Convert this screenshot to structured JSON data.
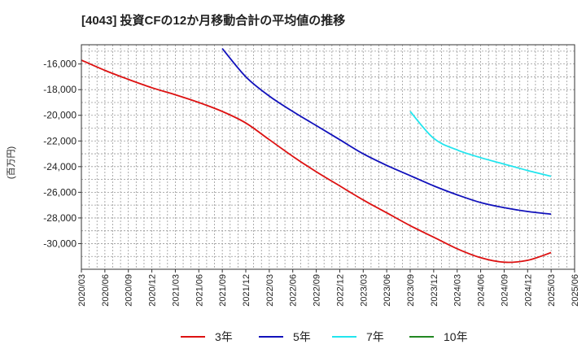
{
  "chart_data": {
    "type": "line",
    "title": "[4043]  投資CFの12か月移動合計の平均値の推移",
    "ylabel": "(百万円)",
    "xlabel": "",
    "ylim": [
      -32000,
      -14500
    ],
    "yticks": [
      -16000,
      -18000,
      -20000,
      -22000,
      -24000,
      -26000,
      -28000,
      -30000
    ],
    "ytick_labels": [
      "-16,000",
      "-18,000",
      "-20,000",
      "-22,000",
      "-24,000",
      "-26,000",
      "-28,000",
      "-30,000"
    ],
    "xticks": [
      "2020/03",
      "2020/06",
      "2020/09",
      "2020/12",
      "2021/03",
      "2021/06",
      "2021/09",
      "2021/12",
      "2022/03",
      "2022/06",
      "2022/09",
      "2022/12",
      "2023/03",
      "2023/06",
      "2023/09",
      "2023/12",
      "2024/03",
      "2024/06",
      "2024/09",
      "2024/12",
      "2025/03",
      "2025/06"
    ],
    "grid": true,
    "legend_position": "bottom",
    "series": [
      {
        "name": "3年",
        "color": "#dd1111",
        "points": [
          [
            "2020/03",
            -15700
          ],
          [
            "2020/06",
            -16500
          ],
          [
            "2020/09",
            -17200
          ],
          [
            "2020/12",
            -17850
          ],
          [
            "2021/03",
            -18400
          ],
          [
            "2021/06",
            -19000
          ],
          [
            "2021/09",
            -19700
          ],
          [
            "2021/12",
            -20600
          ],
          [
            "2022/03",
            -21900
          ],
          [
            "2022/06",
            -23200
          ],
          [
            "2022/09",
            -24400
          ],
          [
            "2022/12",
            -25500
          ],
          [
            "2023/03",
            -26600
          ],
          [
            "2023/06",
            -27600
          ],
          [
            "2023/09",
            -28600
          ],
          [
            "2023/12",
            -29500
          ],
          [
            "2024/03",
            -30400
          ],
          [
            "2024/06",
            -31100
          ],
          [
            "2024/09",
            -31450
          ],
          [
            "2024/12",
            -31300
          ],
          [
            "2025/03",
            -30700
          ]
        ]
      },
      {
        "name": "5年",
        "color": "#1111bb",
        "points": [
          [
            "2021/09",
            -14800
          ],
          [
            "2021/12",
            -17000
          ],
          [
            "2022/03",
            -18500
          ],
          [
            "2022/06",
            -19700
          ],
          [
            "2022/09",
            -20800
          ],
          [
            "2022/12",
            -21900
          ],
          [
            "2023/03",
            -23000
          ],
          [
            "2023/06",
            -23900
          ],
          [
            "2023/09",
            -24700
          ],
          [
            "2023/12",
            -25500
          ],
          [
            "2024/03",
            -26200
          ],
          [
            "2024/06",
            -26800
          ],
          [
            "2024/09",
            -27200
          ],
          [
            "2024/12",
            -27500
          ],
          [
            "2025/03",
            -27700
          ]
        ]
      },
      {
        "name": "7年",
        "color": "#22e5ee",
        "points": [
          [
            "2023/09",
            -19700
          ],
          [
            "2023/12",
            -21800
          ],
          [
            "2024/03",
            -22700
          ],
          [
            "2024/06",
            -23300
          ],
          [
            "2024/09",
            -23800
          ],
          [
            "2024/12",
            -24300
          ],
          [
            "2025/03",
            -24750
          ]
        ]
      },
      {
        "name": "10年",
        "color": "#228822",
        "points": []
      }
    ]
  }
}
